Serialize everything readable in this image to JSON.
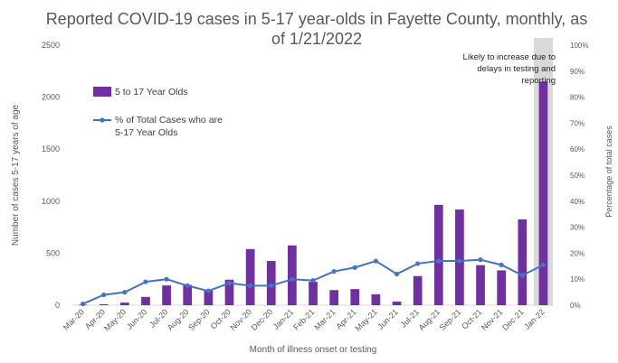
{
  "chart_data": {
    "type": "bar",
    "title_lines": [
      "Reported COVID-19 cases in 5-17 year-olds in Fayette County, monthly, as",
      "of 1/21/2022"
    ],
    "xlabel": "Month of illness onset or testing",
    "ylabel": "Number of cases 5-17 years of age",
    "y2label": "Percentage of total cases",
    "categories": [
      "Mar-20",
      "Apr-20",
      "May-20",
      "Jun-20",
      "Jul-20",
      "Aug-20",
      "Sep-20",
      "Oct-20",
      "Nov-20",
      "Dec-20",
      "Jan-21",
      "Feb-21",
      "Mar-21",
      "Apr-21",
      "May-21",
      "Jun-21",
      "Jul-21",
      "Aug-21",
      "Sep-21",
      "Oct-21",
      "Nov-21",
      "Dec-21",
      "Jan-22"
    ],
    "ylim": [
      0,
      2500
    ],
    "y_ticks": [
      0,
      500,
      1000,
      1500,
      2000,
      2500
    ],
    "y2lim": [
      0,
      100
    ],
    "y2_ticks": [
      "0%",
      "10%",
      "20%",
      "30%",
      "40%",
      "50%",
      "60%",
      "70%",
      "80%",
      "90%",
      "100%"
    ],
    "grid": false,
    "legend_position": "upper-left",
    "series": [
      {
        "name": "5 to 17 Year Olds",
        "kind": "bar",
        "axis": "left",
        "color": "#7030a0",
        "values": [
          5,
          10,
          25,
          80,
          190,
          195,
          140,
          245,
          540,
          425,
          575,
          225,
          145,
          155,
          105,
          35,
          280,
          965,
          920,
          385,
          335,
          825,
          2150
        ]
      },
      {
        "name": "% of Total Cases who are 5-17 Year Olds",
        "kind": "line",
        "axis": "right",
        "color": "#4472c4",
        "values": [
          0.5,
          4,
          5,
          9,
          10,
          7.5,
          5.5,
          8.5,
          7.5,
          7.5,
          10,
          9.5,
          13,
          14.5,
          17,
          12,
          16,
          17,
          17,
          17.5,
          15.5,
          11.5,
          15.5
        ]
      }
    ],
    "highlight": {
      "category": "Jan-22",
      "color": "#d9d9d9",
      "annotation_lines": [
        "Likely to increase due to",
        "delays in testing and",
        "reporting"
      ]
    }
  }
}
